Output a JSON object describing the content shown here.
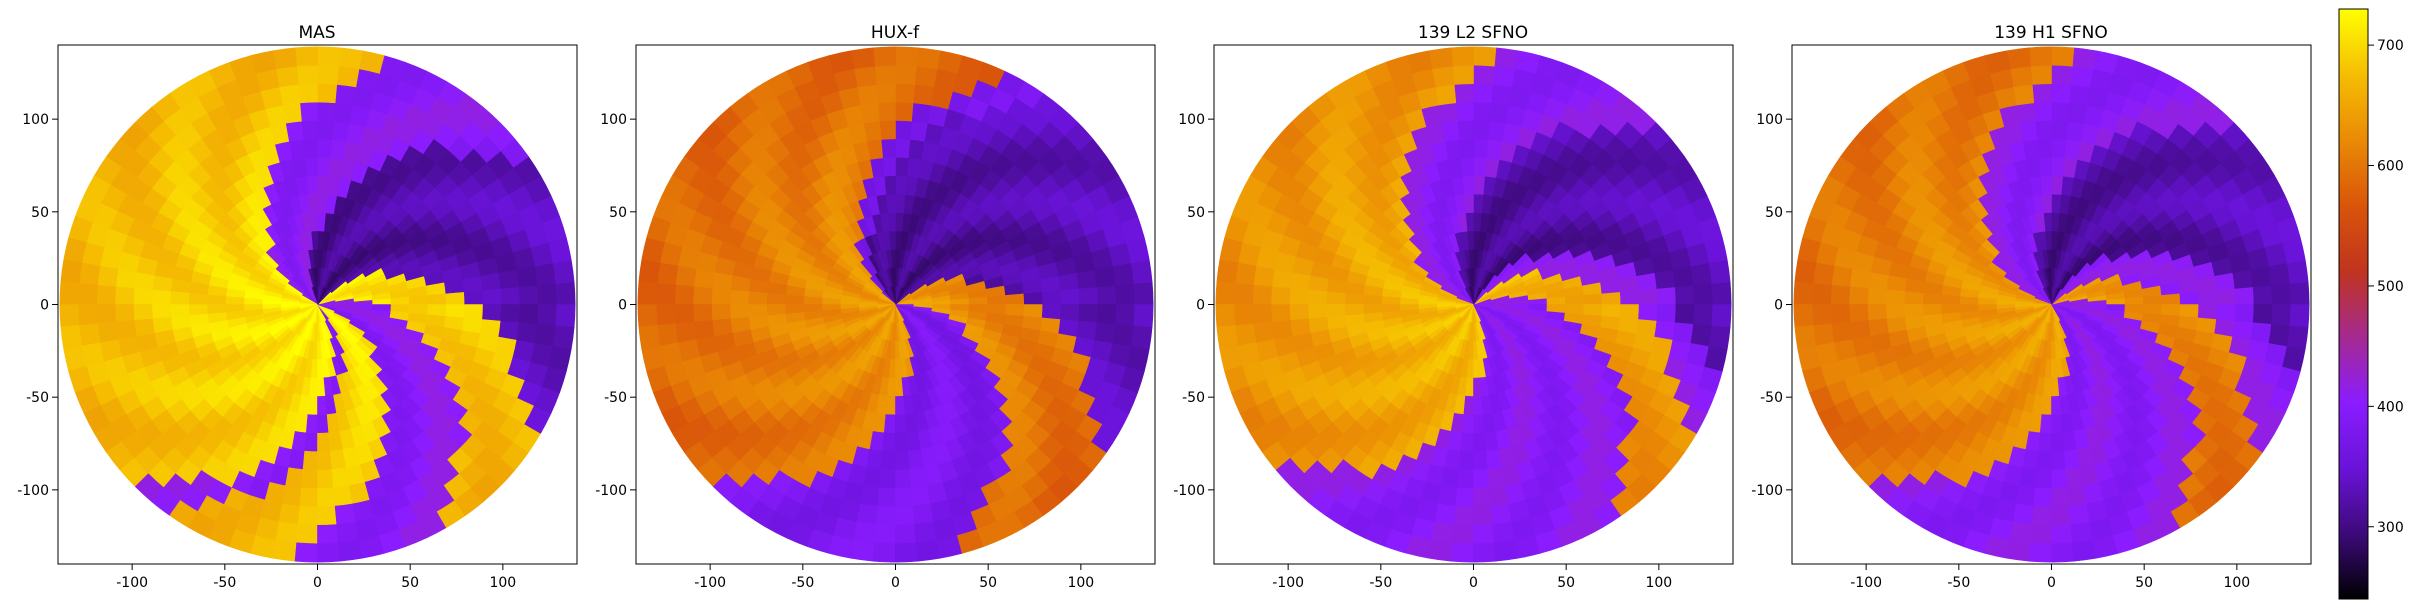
{
  "chart_data": [
    {
      "type": "heatmap",
      "title": "MAS",
      "xlim": [
        -140,
        140
      ],
      "ylim": [
        -140,
        140
      ],
      "x_ticks": [
        -100,
        -50,
        0,
        50,
        100
      ],
      "y_ticks": [
        100,
        50,
        0,
        -50,
        -100
      ],
      "spiral": {
        "fast_sectors_deg": [
          [
            150,
            300
          ],
          [
            310,
            340
          ],
          [
            15,
            45
          ]
        ],
        "peak_value": 720,
        "base_value": 400,
        "dark_region_deg": [
          45,
          110
        ]
      }
    },
    {
      "type": "heatmap",
      "title": "HUX-f",
      "xlim": [
        -140,
        140
      ],
      "ylim": [
        -140,
        140
      ],
      "x_ticks": [
        -100,
        -50,
        0,
        50,
        100
      ],
      "y_ticks": [
        100,
        50,
        0,
        -50,
        -100
      ],
      "spiral": {
        "fast_sectors_deg": [
          [
            140,
            300
          ],
          [
            0,
            40
          ]
        ],
        "peak_value": 640,
        "base_value": 380,
        "dark_region_deg": [
          40,
          130
        ]
      }
    },
    {
      "type": "heatmap",
      "title": "139 L2 SFNO",
      "xlim": [
        -140,
        140
      ],
      "ylim": [
        -140,
        140
      ],
      "x_ticks": [
        -100,
        -50,
        0,
        50,
        100
      ],
      "y_ticks": [
        100,
        50,
        0,
        -50,
        -100
      ],
      "spiral": {
        "fast_sectors_deg": [
          [
            160,
            295
          ],
          [
            20,
            45
          ]
        ],
        "peak_value": 680,
        "base_value": 400,
        "dark_region_deg": [
          60,
          120
        ]
      }
    },
    {
      "type": "heatmap",
      "title": "139 H1 SFNO",
      "xlim": [
        -140,
        140
      ],
      "ylim": [
        -140,
        140
      ],
      "x_ticks": [
        -100,
        -50,
        0,
        50,
        100
      ],
      "y_ticks": [
        100,
        50,
        0,
        -50,
        -100
      ],
      "spiral": {
        "fast_sectors_deg": [
          [
            160,
            300
          ],
          [
            15,
            40
          ]
        ],
        "peak_value": 650,
        "base_value": 400,
        "dark_region_deg": [
          60,
          120
        ]
      }
    }
  ],
  "colorbar": {
    "colormap": "gnuplot",
    "range": [
      240,
      730
    ],
    "ticks": [
      700,
      600,
      500,
      400,
      300
    ],
    "colors": [
      "#000000",
      "#3d0a7a",
      "#6a13d9",
      "#8b1cff",
      "#a52a8f",
      "#c0341f",
      "#d9550a",
      "#ea8a05",
      "#f5bd02",
      "#ffff00"
    ]
  }
}
